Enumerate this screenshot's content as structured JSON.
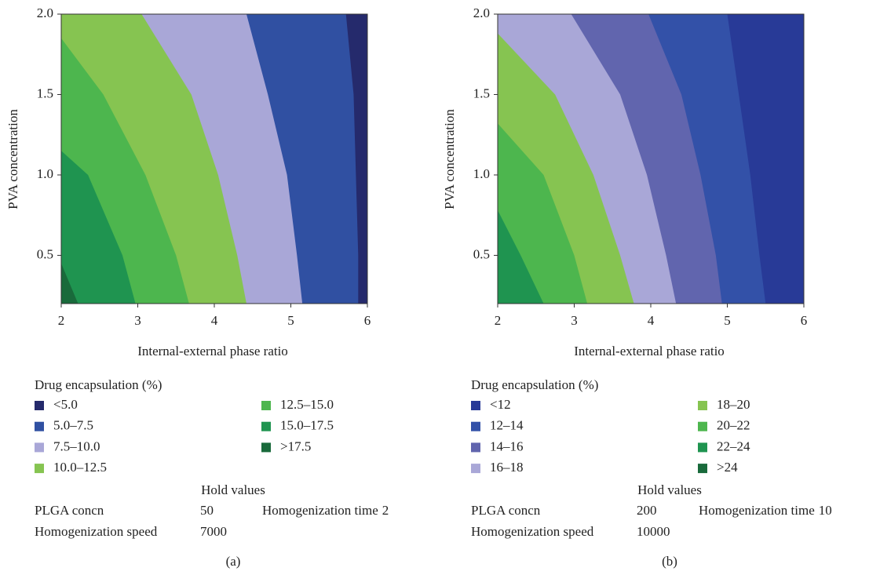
{
  "chart_data": [
    {
      "type": "contour",
      "caption": "(a)",
      "xlabel": "Internal-external phase ratio",
      "ylabel": "PVA concentration",
      "xlim": [
        2,
        6
      ],
      "ylim": [
        0.2,
        2.0
      ],
      "xticks": [
        2,
        3,
        4,
        5,
        6
      ],
      "yticks": [
        0.5,
        {
          "value": 1,
          "label": "1.0"
        },
        1.5,
        {
          "value": 2,
          "label": "2.0"
        }
      ],
      "legend_title": "Drug encapsulation (%)",
      "series": [
        {
          "name": "<5.0",
          "color": "#252a6c",
          "boundary": {
            "x": [
              5.88,
              5.88,
              5.85,
              5.82,
              5.72
            ],
            "y": [
              0.2,
              0.5,
              1.0,
              1.5,
              2.0
            ]
          }
        },
        {
          "name": "5.0–7.5",
          "color": "#3050a2",
          "boundary": {
            "x": [
              5.15,
              5.08,
              4.95,
              4.7,
              4.42
            ],
            "y": [
              0.2,
              0.5,
              1.0,
              1.5,
              2.0
            ]
          }
        },
        {
          "name": "7.5–10.0",
          "color": "#a9a7d7",
          "boundary": {
            "x": [
              4.42,
              4.3,
              4.05,
              3.7,
              3.05
            ],
            "y": [
              0.2,
              0.5,
              1.0,
              1.5,
              2.0
            ]
          }
        },
        {
          "name": "10.0–12.5",
          "color": "#86c451",
          "boundary": {
            "x": [
              3.67,
              3.5,
              3.1,
              2.55,
              2.0
            ],
            "y": [
              0.2,
              0.5,
              1.0,
              1.5,
              1.85
            ]
          }
        },
        {
          "name": "12.5–15.0",
          "color": "#4db64e",
          "boundary": {
            "x": [
              2.97,
              2.8,
              2.35,
              2.0
            ],
            "y": [
              0.2,
              0.5,
              1.0,
              1.15
            ]
          }
        },
        {
          "name": "15.0–17.5",
          "color": "#1f9450",
          "boundary": {
            "x": [
              2.22,
              2.0
            ],
            "y": [
              0.2,
              0.45
            ]
          }
        },
        {
          "name": ">17.5",
          "color": "#196a3b"
        }
      ],
      "hold_values": {
        "title": "Hold values",
        "items": [
          {
            "name": "PLGA concn",
            "value": 50
          },
          {
            "name": "Homogenization time",
            "value": 2
          },
          {
            "name": "Homogenization speed",
            "value": 7000
          }
        ]
      }
    },
    {
      "type": "contour",
      "caption": "(b)",
      "xlabel": "Internal-external phase ratio",
      "ylabel": "PVA concentration",
      "xlim": [
        2,
        6
      ],
      "ylim": [
        0.2,
        2.0
      ],
      "xticks": [
        2,
        3,
        4,
        5,
        6
      ],
      "yticks": [
        0.5,
        {
          "value": 1,
          "label": "1.0"
        },
        1.5,
        {
          "value": 2,
          "label": "2.0"
        }
      ],
      "legend_title": "Drug encapsulation (%)",
      "series": [
        {
          "name": "<12",
          "color": "#283a97",
          "boundary": {
            "x": [
              5.5,
              5.42,
              5.3,
              5.15,
              5.0
            ],
            "y": [
              0.2,
              0.5,
              1.0,
              1.5,
              2.0
            ]
          }
        },
        {
          "name": "12–14",
          "color": "#3351a8",
          "boundary": {
            "x": [
              4.93,
              4.85,
              4.65,
              4.4,
              3.97
            ],
            "y": [
              0.2,
              0.5,
              1.0,
              1.5,
              2.0
            ]
          }
        },
        {
          "name": "14–16",
          "color": "#6165ae",
          "boundary": {
            "x": [
              4.33,
              4.2,
              3.95,
              3.6,
              2.96
            ],
            "y": [
              0.2,
              0.5,
              1.0,
              1.5,
              2.0
            ]
          }
        },
        {
          "name": "16–18",
          "color": "#a9a7d7",
          "boundary": {
            "x": [
              3.78,
              3.6,
              3.25,
              2.75,
              2.0
            ],
            "y": [
              0.2,
              0.5,
              1.0,
              1.5,
              1.88
            ]
          }
        },
        {
          "name": "18–20",
          "color": "#86c451",
          "boundary": {
            "x": [
              3.17,
              3.0,
              2.6,
              2.0
            ],
            "y": [
              0.2,
              0.5,
              1.0,
              1.32
            ]
          }
        },
        {
          "name": "20–22",
          "color": "#4db64e",
          "boundary": {
            "x": [
              2.6,
              2.3,
              2.0
            ],
            "y": [
              0.2,
              0.5,
              0.78
            ]
          }
        },
        {
          "name": "22–24",
          "color": "#1f9450"
        },
        {
          "name": ">24",
          "color": "#196a3b"
        }
      ],
      "hold_values": {
        "title": "Hold values",
        "items": [
          {
            "name": "PLGA concn",
            "value": 200
          },
          {
            "name": "Homogenization time",
            "value": 10
          },
          {
            "name": "Homogenization speed",
            "value": 10000
          }
        ]
      }
    }
  ]
}
